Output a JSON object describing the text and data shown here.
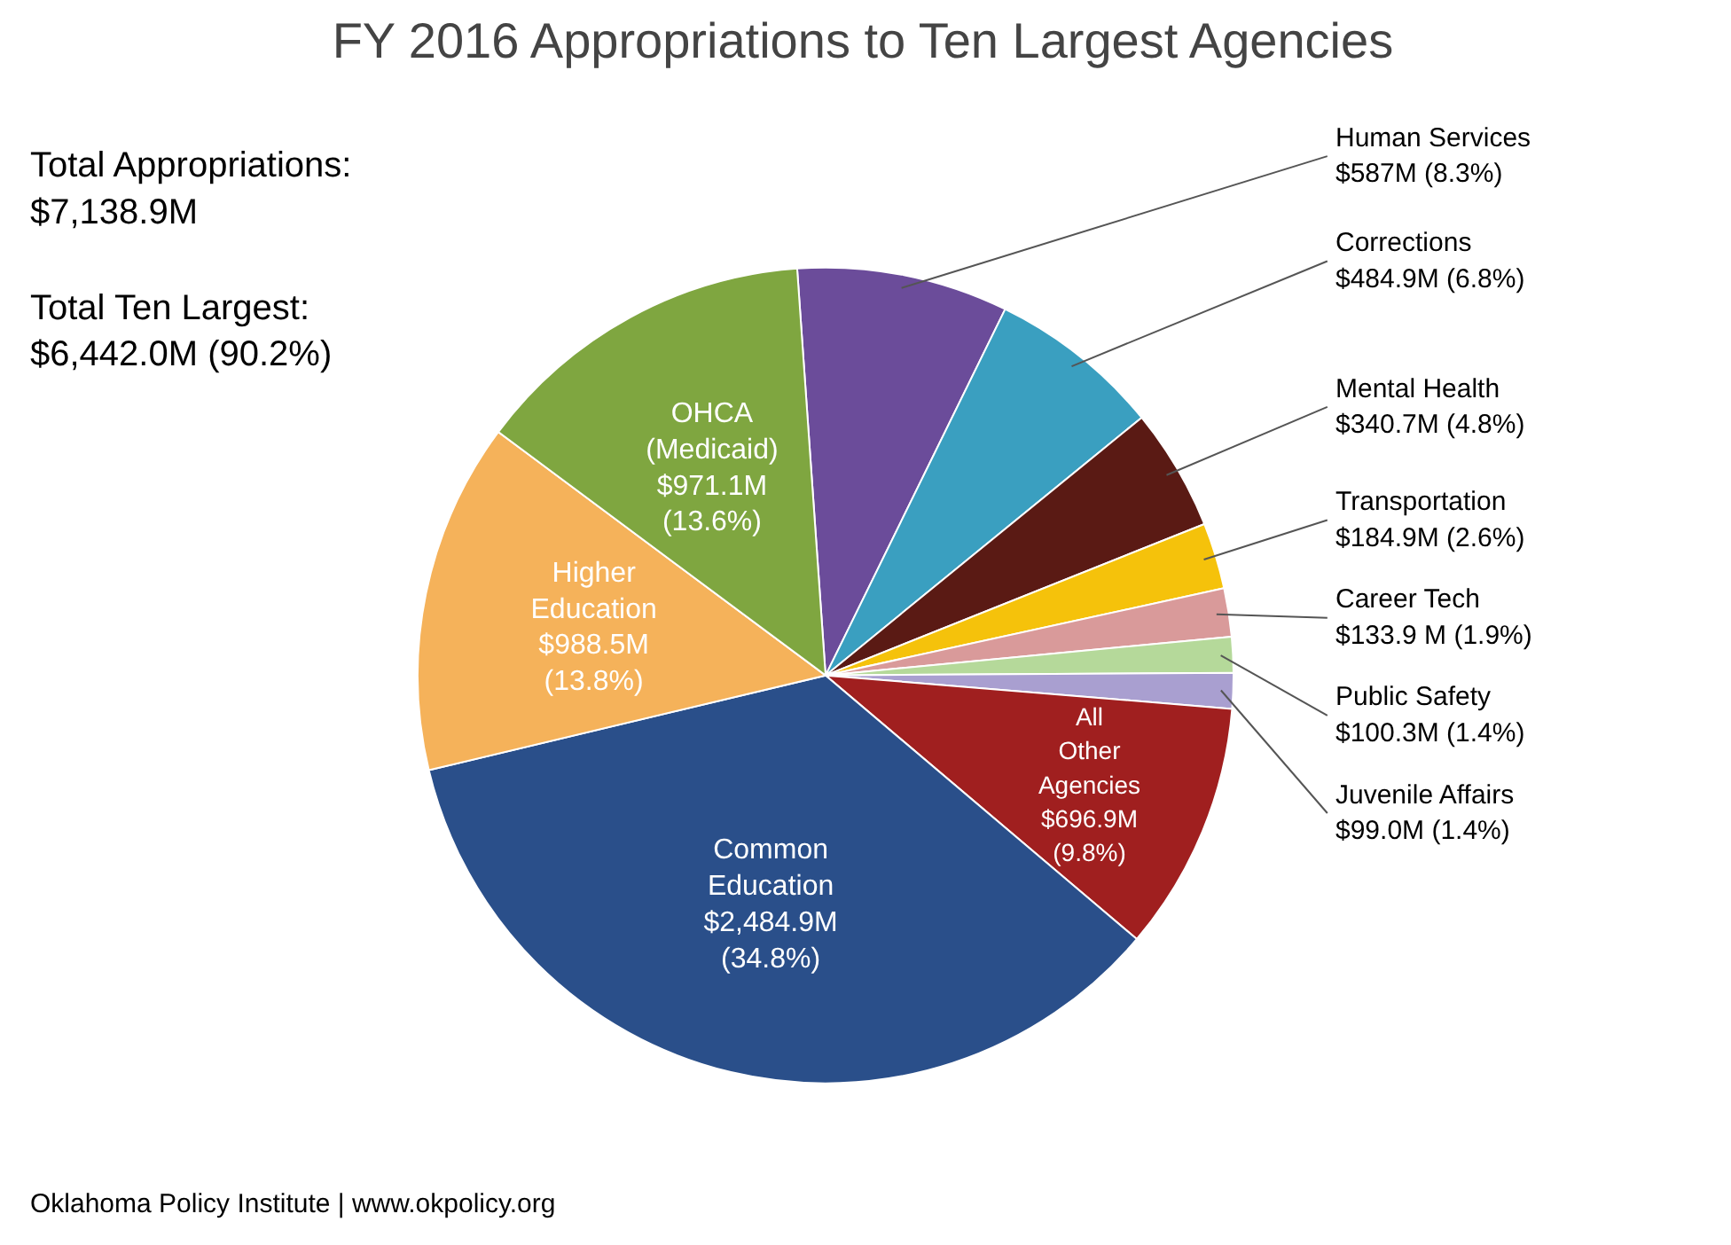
{
  "chart_data": {
    "type": "pie",
    "title": "FY 2016 Appropriations to Ten Largest Agencies",
    "categories": [
      "Human Services",
      "Corrections",
      "Mental Health",
      "Transportation",
      "Career Tech",
      "Public Safety",
      "Juvenile Affairs",
      "All Other Agencies",
      "Common Education",
      "Higher Education",
      "OHCA (Medicaid)"
    ],
    "values": [
      8.3,
      6.8,
      4.8,
      2.6,
      1.9,
      1.4,
      1.4,
      9.8,
      34.8,
      13.8,
      13.6
    ],
    "value_labels": [
      "$587M (8.3%)",
      "$484.9M (6.8%)",
      "$340.7M (4.8%)",
      "$184.9M (2.6%)",
      "$133.9 M (1.9%)",
      "$100.3M (1.4%)",
      "$99.0M (1.4%)",
      "$696.9M (9.8%)",
      "$2,484.9M (34.8%)",
      "$988.5M (13.8%)",
      "$971.1M (13.6%)"
    ],
    "colors": [
      "#6b4c9a",
      "#3a9fc0",
      "#5a1a14",
      "#f5c20b",
      "#d99a9a",
      "#b5d99a",
      "#a99fd0",
      "#a01f1f",
      "#2a4f8a",
      "#f5b25a",
      "#7fa640"
    ],
    "annotations": [
      "Total Appropriations:\n$7,138.9M",
      "Total Ten Largest:\n$6,442.0M (90.2%)",
      "Oklahoma Policy Institute | www.okpolicy.org"
    ]
  }
}
